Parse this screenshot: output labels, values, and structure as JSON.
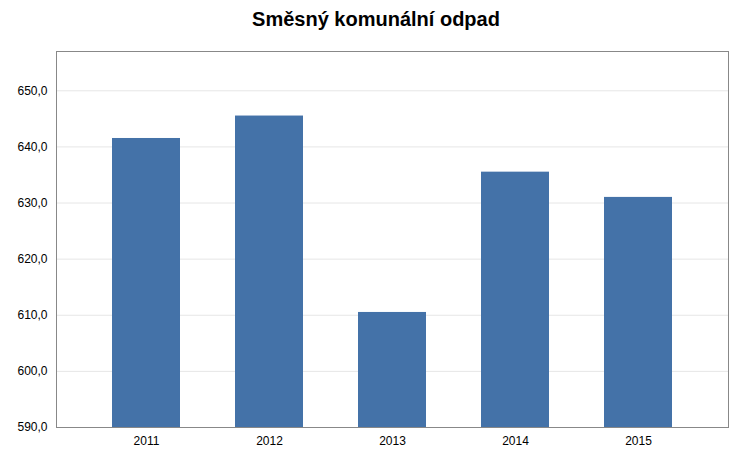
{
  "chart_data": {
    "type": "bar",
    "title": "Směsný komunální odpad",
    "categories": [
      "2011",
      "2012",
      "2013",
      "2014",
      "2015"
    ],
    "values": [
      641.5,
      645.5,
      610.5,
      635.5,
      631.0
    ],
    "color": "#4472A8",
    "ylim": [
      590.0,
      657.0
    ],
    "yticks": [
      {
        "value": 590.0,
        "label": "590,0"
      },
      {
        "value": 600.0,
        "label": "600,0"
      },
      {
        "value": 610.0,
        "label": "610,0"
      },
      {
        "value": 620.0,
        "label": "620,0"
      },
      {
        "value": 630.0,
        "label": "630,0"
      },
      {
        "value": 640.0,
        "label": "640,0"
      },
      {
        "value": 650.0,
        "label": "650,0"
      }
    ],
    "grid": true
  }
}
